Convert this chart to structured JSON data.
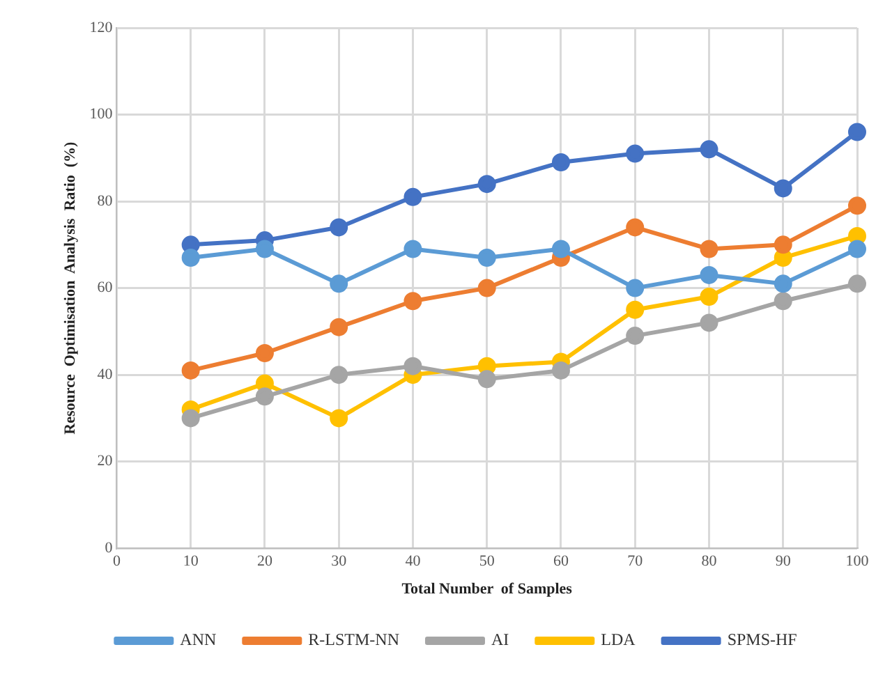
{
  "chart_data": {
    "type": "line",
    "xlabel": "Total Number  of Samples",
    "ylabel": "Resource  Optimisation  Analysis  Ratio  (%)",
    "x": [
      10,
      20,
      30,
      40,
      50,
      60,
      70,
      80,
      90,
      100
    ],
    "xlim": [
      0,
      100
    ],
    "xticks": [
      0,
      10,
      20,
      30,
      40,
      50,
      60,
      70,
      80,
      90,
      100
    ],
    "ylim": [
      0,
      120
    ],
    "yticks": [
      0,
      20,
      40,
      60,
      80,
      100,
      120
    ],
    "grid": true,
    "legend": "bottom",
    "marker": "circle",
    "line_style": "solid",
    "series": [
      {
        "name": "ANN",
        "color": "#5b9bd5",
        "values": [
          67,
          69,
          61,
          69,
          67,
          69,
          60,
          63,
          61,
          69
        ]
      },
      {
        "name": "R-LSTM-NN",
        "color": "#ed7d31",
        "values": [
          41,
          45,
          51,
          57,
          60,
          67,
          74,
          69,
          70,
          79
        ]
      },
      {
        "name": "AI",
        "color": "#a5a5a5",
        "values": [
          30,
          35,
          40,
          42,
          39,
          41,
          49,
          52,
          57,
          61
        ]
      },
      {
        "name": "LDA",
        "color": "#ffc000",
        "values": [
          32,
          38,
          30,
          40,
          42,
          43,
          55,
          58,
          67,
          72
        ]
      },
      {
        "name": "SPMS-HF",
        "color": "#4472c4",
        "values": [
          70,
          71,
          74,
          81,
          84,
          89,
          91,
          92,
          83,
          96
        ]
      }
    ]
  }
}
